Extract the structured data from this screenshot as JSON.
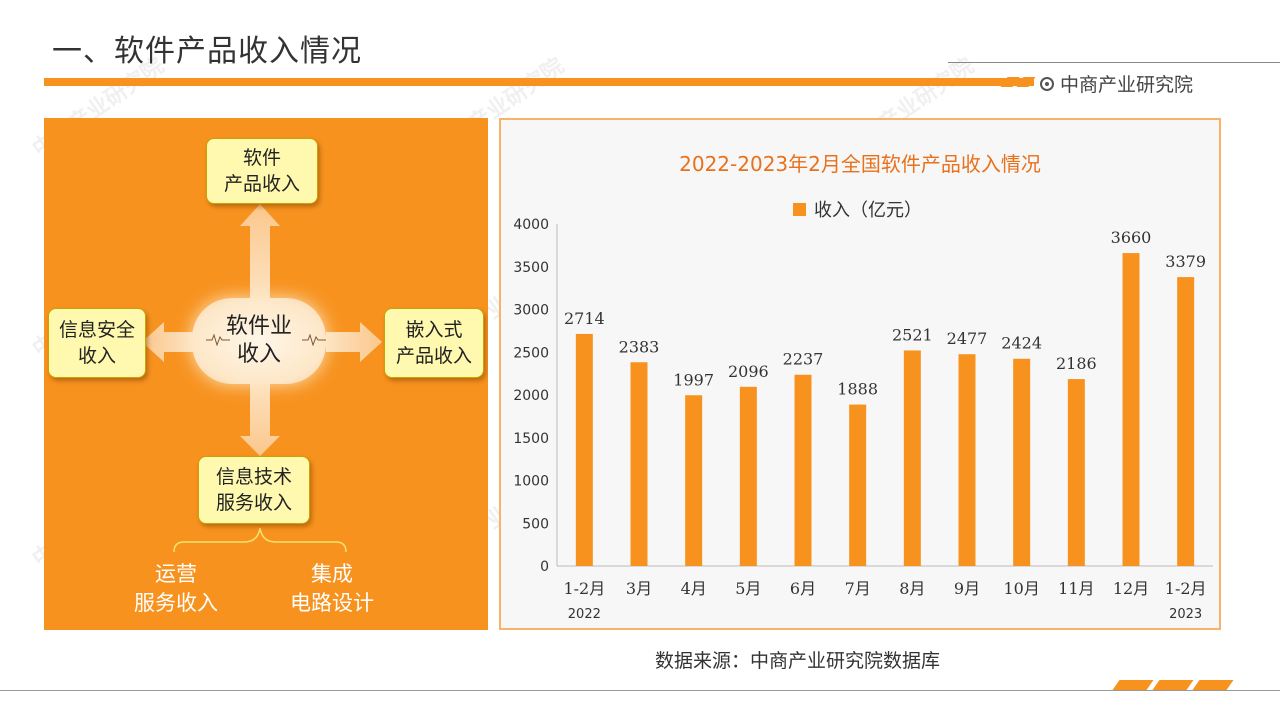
{
  "page": {
    "title": "一、软件产品收入情况",
    "brand": "中商产业研究院",
    "watermark": "中商产业研究院"
  },
  "diagram": {
    "center": [
      "软件业",
      "收入"
    ],
    "top": [
      "软件",
      "产品收入"
    ],
    "left": [
      "信息安全",
      "收入"
    ],
    "right": [
      "嵌入式",
      "产品收入"
    ],
    "bottom": [
      "信息技术",
      "服务收入"
    ],
    "sub_left": [
      "运营",
      "服务收入"
    ],
    "sub_right": [
      "集成",
      "电路设计"
    ]
  },
  "source": "数据来源：中商产业研究院数据库",
  "colors": {
    "accent": "#f7921e",
    "title": "#e8711c"
  },
  "chart_data": {
    "type": "bar",
    "title": "2022-2023年2月全国软件产品收入情况",
    "series": [
      {
        "name": "收入（亿元）",
        "values": [
          2714,
          2383,
          1997,
          2096,
          2237,
          1888,
          2521,
          2477,
          2424,
          2186,
          3660,
          3379
        ]
      }
    ],
    "categories": [
      "1-2月",
      "3月",
      "4月",
      "5月",
      "6月",
      "7月",
      "8月",
      "9月",
      "10月",
      "11月",
      "12月",
      "1-2月"
    ],
    "year_labels": [
      "2022",
      "2023"
    ],
    "yticks": [
      0,
      500,
      1000,
      1500,
      2000,
      2500,
      3000,
      3500,
      4000
    ],
    "ylim": [
      0,
      4000
    ],
    "legend_position": "top",
    "grid": false
  }
}
